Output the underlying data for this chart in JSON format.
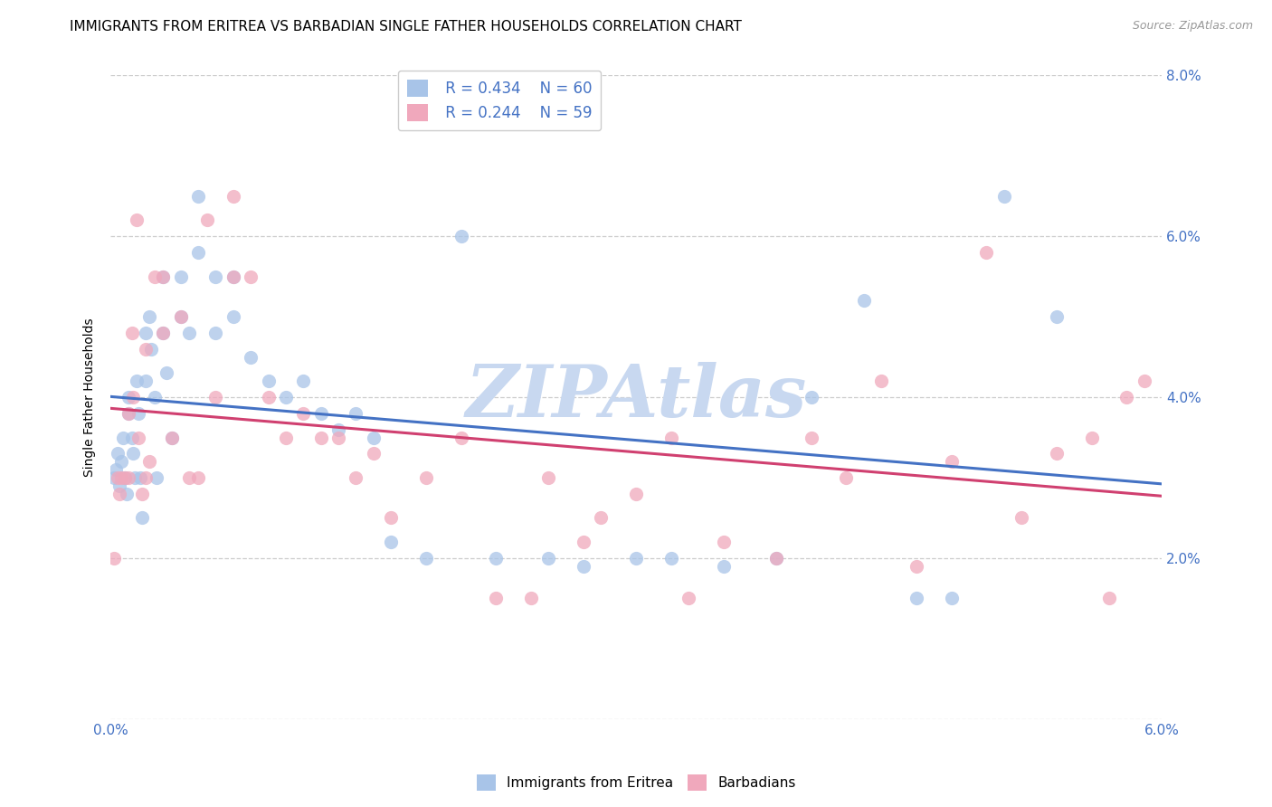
{
  "title": "IMMIGRANTS FROM ERITREA VS BARBADIAN SINGLE FATHER HOUSEHOLDS CORRELATION CHART",
  "source": "Source: ZipAtlas.com",
  "ylabel": "Single Father Households",
  "xlim": [
    0.0,
    0.06
  ],
  "ylim": [
    0.0,
    0.08
  ],
  "xticks": [
    0.0,
    0.01,
    0.02,
    0.03,
    0.04,
    0.05,
    0.06
  ],
  "yticks": [
    0.0,
    0.02,
    0.04,
    0.06,
    0.08
  ],
  "xtick_labels": [
    "0.0%",
    "",
    "",
    "",
    "",
    "",
    "6.0%"
  ],
  "ytick_labels": [
    "",
    "2.0%",
    "4.0%",
    "6.0%",
    "8.0%"
  ],
  "blue_color": "#A8C4E8",
  "pink_color": "#F0A8BC",
  "blue_line_color": "#4472C4",
  "pink_line_color": "#D04070",
  "legend_r1": "R = 0.434",
  "legend_n1": "N = 60",
  "legend_r2": "R = 0.244",
  "legend_n2": "N = 59",
  "legend_label1": "Immigrants from Eritrea",
  "legend_label2": "Barbadians",
  "watermark": "ZIPAtlas",
  "watermark_color": "#C8D8F0",
  "title_fontsize": 11,
  "axis_color": "#4472C4",
  "blue_x": [
    0.0002,
    0.0003,
    0.0004,
    0.0005,
    0.0006,
    0.0007,
    0.0008,
    0.0009,
    0.001,
    0.001,
    0.0012,
    0.0013,
    0.0014,
    0.0015,
    0.0016,
    0.0017,
    0.0018,
    0.002,
    0.002,
    0.0022,
    0.0023,
    0.0025,
    0.0026,
    0.003,
    0.003,
    0.0032,
    0.0035,
    0.004,
    0.004,
    0.0045,
    0.005,
    0.005,
    0.006,
    0.006,
    0.007,
    0.007,
    0.008,
    0.009,
    0.01,
    0.011,
    0.012,
    0.013,
    0.014,
    0.015,
    0.016,
    0.018,
    0.02,
    0.022,
    0.025,
    0.027,
    0.03,
    0.032,
    0.035,
    0.038,
    0.04,
    0.043,
    0.046,
    0.048,
    0.051,
    0.054
  ],
  "blue_y": [
    0.03,
    0.031,
    0.033,
    0.029,
    0.032,
    0.035,
    0.03,
    0.028,
    0.038,
    0.04,
    0.035,
    0.033,
    0.03,
    0.042,
    0.038,
    0.03,
    0.025,
    0.048,
    0.042,
    0.05,
    0.046,
    0.04,
    0.03,
    0.055,
    0.048,
    0.043,
    0.035,
    0.055,
    0.05,
    0.048,
    0.065,
    0.058,
    0.055,
    0.048,
    0.055,
    0.05,
    0.045,
    0.042,
    0.04,
    0.042,
    0.038,
    0.036,
    0.038,
    0.035,
    0.022,
    0.02,
    0.06,
    0.02,
    0.02,
    0.019,
    0.02,
    0.02,
    0.019,
    0.02,
    0.04,
    0.052,
    0.015,
    0.015,
    0.065,
    0.05
  ],
  "pink_x": [
    0.0002,
    0.0004,
    0.0005,
    0.0006,
    0.0008,
    0.001,
    0.001,
    0.0012,
    0.0013,
    0.0015,
    0.0016,
    0.0018,
    0.002,
    0.002,
    0.0022,
    0.0025,
    0.003,
    0.003,
    0.0035,
    0.004,
    0.0045,
    0.005,
    0.0055,
    0.006,
    0.007,
    0.007,
    0.008,
    0.009,
    0.01,
    0.011,
    0.012,
    0.013,
    0.014,
    0.015,
    0.016,
    0.018,
    0.02,
    0.022,
    0.024,
    0.025,
    0.027,
    0.028,
    0.03,
    0.032,
    0.033,
    0.035,
    0.038,
    0.04,
    0.042,
    0.044,
    0.046,
    0.048,
    0.05,
    0.052,
    0.054,
    0.056,
    0.057,
    0.058,
    0.059
  ],
  "pink_y": [
    0.02,
    0.03,
    0.028,
    0.03,
    0.03,
    0.038,
    0.03,
    0.048,
    0.04,
    0.062,
    0.035,
    0.028,
    0.046,
    0.03,
    0.032,
    0.055,
    0.055,
    0.048,
    0.035,
    0.05,
    0.03,
    0.03,
    0.062,
    0.04,
    0.065,
    0.055,
    0.055,
    0.04,
    0.035,
    0.038,
    0.035,
    0.035,
    0.03,
    0.033,
    0.025,
    0.03,
    0.035,
    0.015,
    0.015,
    0.03,
    0.022,
    0.025,
    0.028,
    0.035,
    0.015,
    0.022,
    0.02,
    0.035,
    0.03,
    0.042,
    0.019,
    0.032,
    0.058,
    0.025,
    0.033,
    0.035,
    0.015,
    0.04,
    0.042
  ]
}
